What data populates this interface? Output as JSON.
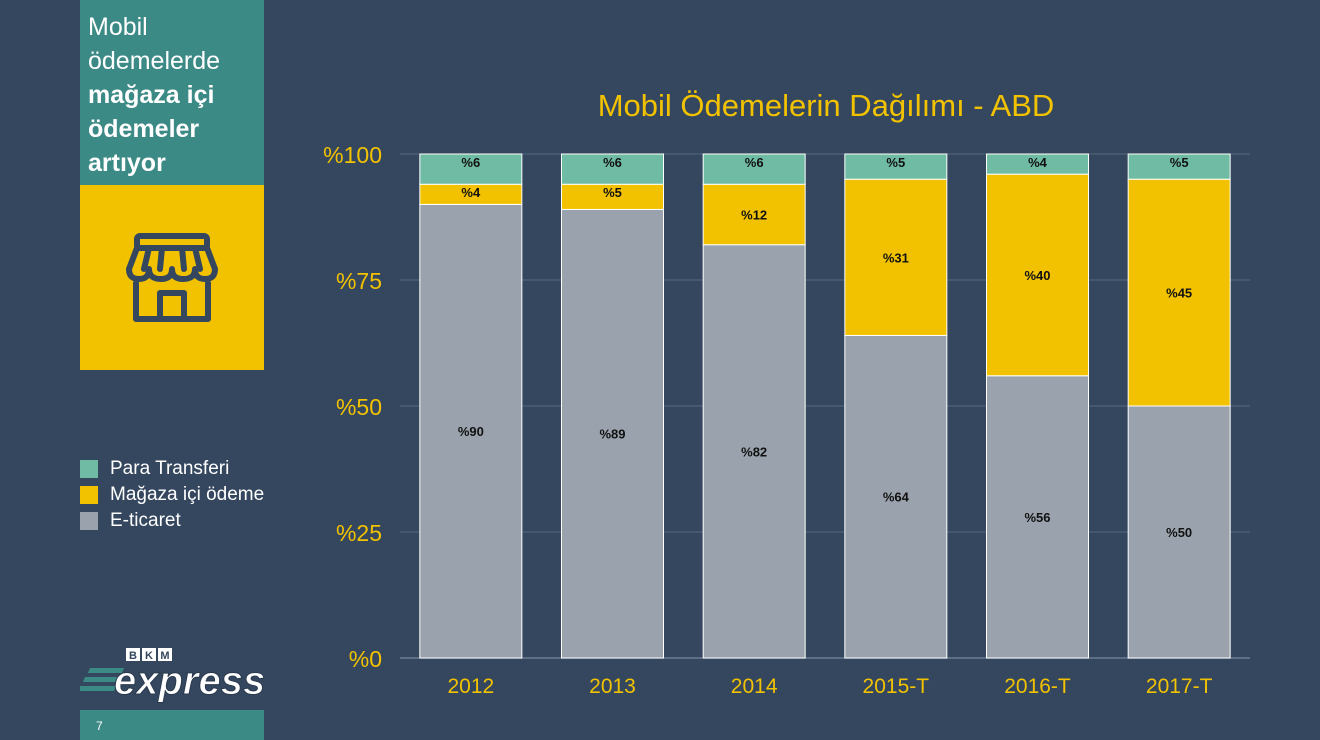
{
  "sidebar": {
    "title_lines": [
      {
        "text": "Mobil",
        "weight": "light"
      },
      {
        "text": "ödemelerde",
        "weight": "light"
      },
      {
        "text": "mağaza içi",
        "weight": "bold"
      },
      {
        "text": "ödemeler",
        "weight": "bold"
      },
      {
        "text": "artıyor",
        "weight": "bold"
      }
    ],
    "icon": "store-icon",
    "page_number": "7",
    "logo": {
      "top": "BKM",
      "main": "express"
    }
  },
  "colors": {
    "background": "#34475e",
    "panel_teal": "#3c8a86",
    "accent_yellow": "#f2c200",
    "para_transferi": "#6fbba3",
    "magaza_ici": "#f2c200",
    "e_ticaret": "#9aa3ad"
  },
  "chart_data": {
    "type": "bar",
    "stacked": true,
    "title": "Mobil Ödemelerin Dağılımı - ABD",
    "categories": [
      "2012",
      "2013",
      "2014",
      "2015-T",
      "2016-T",
      "2017-T"
    ],
    "series": [
      {
        "name": "E-ticaret",
        "color": "#9aa3ad",
        "values": [
          90,
          89,
          82,
          64,
          56,
          50
        ],
        "labels": [
          "%90",
          "%89",
          "%82",
          "%64",
          "%56",
          "%50"
        ]
      },
      {
        "name": "Mağaza içi ödeme",
        "color": "#f2c200",
        "values": [
          4,
          5,
          12,
          31,
          40,
          45
        ],
        "labels": [
          "%4",
          "%5",
          "%12",
          "%31",
          "%40",
          "%45"
        ]
      },
      {
        "name": "Para Transferi",
        "color": "#6fbba3",
        "values": [
          6,
          6,
          6,
          5,
          4,
          5
        ],
        "labels": [
          "%6",
          "%6",
          "%6",
          "%5",
          "%4",
          "%5"
        ]
      }
    ],
    "legend_order": [
      "Para Transferi",
      "Mağaza içi ödeme",
      "E-ticaret"
    ],
    "yticks": [
      {
        "value": 0,
        "label": "%0"
      },
      {
        "value": 25,
        "label": "%25"
      },
      {
        "value": 50,
        "label": "%50"
      },
      {
        "value": 75,
        "label": "%75"
      },
      {
        "value": 100,
        "label": "%100"
      }
    ],
    "ylim": [
      0,
      100
    ],
    "grid": true,
    "legend_position": "left"
  }
}
